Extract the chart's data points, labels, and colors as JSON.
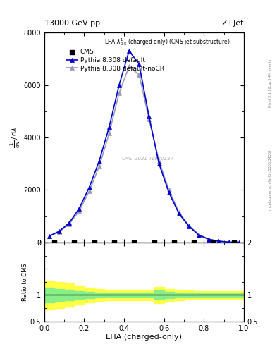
{
  "title_top": "13000 GeV pp",
  "title_right": "Z+Jet",
  "plot_label": "LHA $\\lambda^{1}_{0.5}$ (charged only) (CMS jet substructure)",
  "watermark": "CMS_2021_I1920187",
  "rivet_label": "Rivet 3.1.10, ≥ 3.4M events",
  "mcplots_label": "mcplots.cern.ch [arXiv:1306.3436]",
  "xlabel": "LHA (charged-only)",
  "ylabel_ratio": "Ratio to CMS",
  "xlim": [
    0,
    1
  ],
  "ylim_main": [
    0,
    8000
  ],
  "ylim_ratio": [
    0.5,
    2.0
  ],
  "yticks_main": [
    0,
    2000,
    4000,
    6000,
    8000
  ],
  "lha_x": [
    0.025,
    0.075,
    0.125,
    0.175,
    0.225,
    0.275,
    0.325,
    0.375,
    0.425,
    0.475,
    0.525,
    0.575,
    0.625,
    0.675,
    0.725,
    0.775,
    0.825,
    0.875,
    0.925,
    0.975
  ],
  "pythia_default_y": [
    250,
    430,
    750,
    1300,
    2100,
    3100,
    4400,
    6000,
    7300,
    6800,
    4800,
    3000,
    1900,
    1100,
    620,
    280,
    120,
    50,
    15,
    4
  ],
  "pythia_nocr_y": [
    230,
    410,
    700,
    1200,
    1950,
    2900,
    4150,
    5700,
    6700,
    6400,
    4700,
    3100,
    2000,
    1150,
    650,
    300,
    130,
    55,
    18,
    5
  ],
  "cms_x": [
    0.05,
    0.15,
    0.25,
    0.35,
    0.45,
    0.55,
    0.65,
    0.75,
    0.85,
    0.95
  ],
  "cms_y": [
    0,
    0,
    0,
    0,
    0,
    0,
    0,
    0,
    0,
    0
  ],
  "ratio_x": [
    0.0,
    0.05,
    0.1,
    0.15,
    0.2,
    0.25,
    0.3,
    0.35,
    0.4,
    0.45,
    0.5,
    0.55,
    0.6,
    0.65,
    0.7,
    0.75,
    0.8,
    0.85,
    0.9,
    0.95,
    1.0
  ],
  "ratio_yellow_lo": [
    0.73,
    0.75,
    0.78,
    0.82,
    0.86,
    0.89,
    0.9,
    0.9,
    0.9,
    0.9,
    0.9,
    0.84,
    0.88,
    0.9,
    0.92,
    0.93,
    0.93,
    0.93,
    0.93,
    0.93,
    0.93
  ],
  "ratio_yellow_hi": [
    1.27,
    1.25,
    1.22,
    1.18,
    1.14,
    1.11,
    1.1,
    1.1,
    1.1,
    1.1,
    1.1,
    1.16,
    1.12,
    1.1,
    1.08,
    1.07,
    1.07,
    1.07,
    1.07,
    1.07,
    1.07
  ],
  "ratio_green_lo": [
    0.86,
    0.88,
    0.9,
    0.93,
    0.94,
    0.95,
    0.96,
    0.96,
    0.96,
    0.96,
    0.96,
    0.92,
    0.94,
    0.95,
    0.96,
    0.97,
    0.97,
    0.97,
    0.97,
    0.97,
    0.97
  ],
  "ratio_green_hi": [
    1.14,
    1.12,
    1.1,
    1.07,
    1.06,
    1.05,
    1.04,
    1.04,
    1.04,
    1.04,
    1.04,
    1.08,
    1.06,
    1.05,
    1.04,
    1.03,
    1.03,
    1.03,
    1.03,
    1.03,
    1.03
  ],
  "color_default": "#0000CC",
  "color_nocr": "#9999BB",
  "color_cms": "#000000",
  "color_yellow": "#FFFF44",
  "color_green": "#88EE88",
  "bg_color": "#ffffff",
  "legend_cms": "CMS",
  "legend_default": "Pythia 8.308 default",
  "legend_nocr": "Pythia 8.308 default-noCR"
}
